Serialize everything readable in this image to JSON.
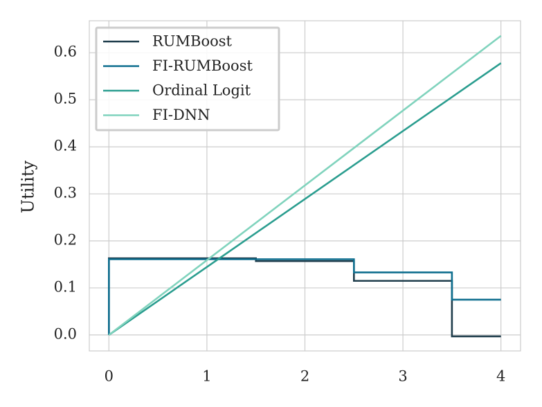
{
  "chart_data": {
    "type": "line",
    "ylabel": "Utility",
    "xlim": [
      -0.2,
      4.2
    ],
    "ylim": [
      -0.034,
      0.668
    ],
    "xticks": [
      0,
      1,
      2,
      3,
      4
    ],
    "yticks": [
      {
        "value": 0,
        "label": "0.0"
      },
      0.1,
      0.2,
      0.3,
      0.4,
      0.5,
      0.6
    ],
    "grid": true,
    "legend": "upper left",
    "series": [
      {
        "name": "RUMBoost",
        "color": "#1f3d4c",
        "x": [
          0,
          0,
          1.5,
          1.5,
          2.5,
          2.5,
          3.5,
          3.5,
          4
        ],
        "values": [
          0,
          0.163,
          0.163,
          0.157,
          0.157,
          0.115,
          0.115,
          -0.003,
          -0.003
        ]
      },
      {
        "name": "FI-RUMBoost",
        "color": "#0f6f8f",
        "x": [
          0,
          0,
          2.5,
          2.5,
          3.5,
          3.5,
          4
        ],
        "values": [
          0,
          0.161,
          0.161,
          0.133,
          0.133,
          0.075,
          0.075
        ]
      },
      {
        "name": "Ordinal Logit",
        "color": "#2a9d8f",
        "x": [
          0,
          4
        ],
        "values": [
          0,
          0.578
        ]
      },
      {
        "name": "FI-DNN",
        "color": "#80d3bd",
        "x": [
          0,
          4
        ],
        "values": [
          0,
          0.636
        ]
      }
    ]
  }
}
